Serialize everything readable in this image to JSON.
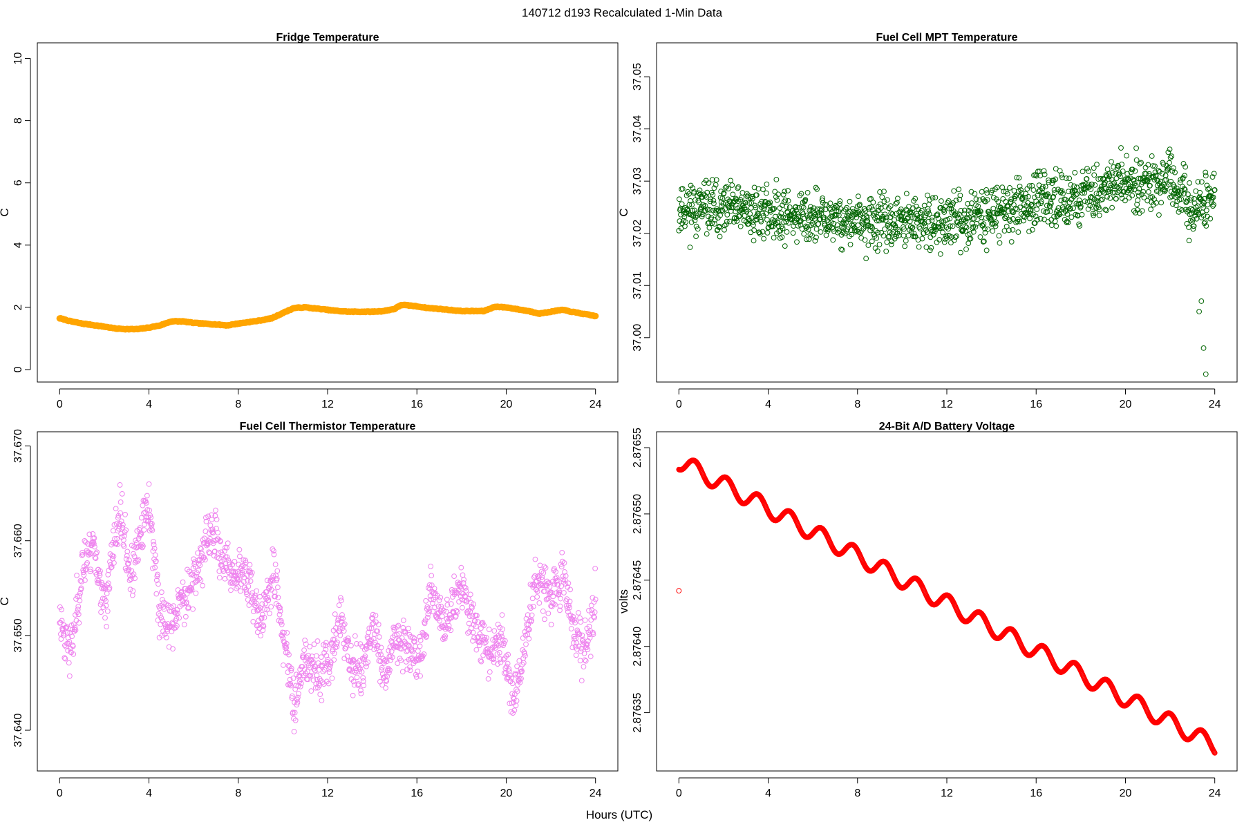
{
  "figure": {
    "title": "140712   d193   Recalculated 1-Min Data",
    "xlabel": "Hours (UTC)"
  },
  "chart_data": [
    {
      "type": "scatter",
      "title": "Fridge Temperature",
      "xlabel": "",
      "ylabel": "C",
      "xlim": [
        -1,
        25
      ],
      "ylim": [
        -0.4,
        10.5
      ],
      "xticks": [
        0,
        4,
        8,
        12,
        16,
        20,
        24
      ],
      "yticks": [
        0,
        2,
        4,
        6,
        8,
        10
      ],
      "ytick_labels": [
        "0",
        "2",
        "4",
        "6",
        "8",
        "10"
      ],
      "color": "#ffa500",
      "series_shape": {
        "mode": "piecewise",
        "noise": 0.02,
        "anchors": [
          [
            0,
            1.65
          ],
          [
            0.5,
            1.55
          ],
          [
            1,
            1.48
          ],
          [
            2,
            1.38
          ],
          [
            2.5,
            1.32
          ],
          [
            3,
            1.3
          ],
          [
            3.5,
            1.3
          ],
          [
            4,
            1.35
          ],
          [
            4.5,
            1.42
          ],
          [
            5,
            1.55
          ],
          [
            5.5,
            1.55
          ],
          [
            6,
            1.5
          ],
          [
            7,
            1.45
          ],
          [
            7.5,
            1.42
          ],
          [
            8,
            1.48
          ],
          [
            9,
            1.58
          ],
          [
            9.5,
            1.65
          ],
          [
            10,
            1.82
          ],
          [
            10.5,
            1.98
          ],
          [
            11,
            2.0
          ],
          [
            12,
            1.92
          ],
          [
            12.5,
            1.88
          ],
          [
            13,
            1.86
          ],
          [
            14,
            1.86
          ],
          [
            14.5,
            1.88
          ],
          [
            15,
            1.95
          ],
          [
            15.3,
            2.08
          ],
          [
            15.8,
            2.05
          ],
          [
            16.5,
            1.98
          ],
          [
            17,
            1.95
          ],
          [
            18,
            1.88
          ],
          [
            19,
            1.88
          ],
          [
            19.5,
            2.02
          ],
          [
            20,
            2.0
          ],
          [
            21,
            1.88
          ],
          [
            21.5,
            1.8
          ],
          [
            22,
            1.86
          ],
          [
            22.5,
            1.92
          ],
          [
            23,
            1.85
          ],
          [
            24,
            1.72
          ]
        ]
      }
    },
    {
      "type": "scatter",
      "title": "Fuel Cell MPT Temperature",
      "xlabel": "",
      "ylabel": "C",
      "xlim": [
        -1,
        25
      ],
      "ylim": [
        36.9915,
        37.0565
      ],
      "xticks": [
        0,
        4,
        8,
        12,
        16,
        20,
        24
      ],
      "yticks": [
        37.0,
        37.01,
        37.02,
        37.03,
        37.04,
        37.05
      ],
      "ytick_labels": [
        "37.00",
        "37.01",
        "37.02",
        "37.03",
        "37.04",
        "37.05"
      ],
      "color": "#006400",
      "series_shape": {
        "mode": "noisy",
        "seed": 11,
        "anchors": [
          [
            0,
            37.025
          ],
          [
            4,
            37.024
          ],
          [
            8,
            37.022
          ],
          [
            12,
            37.022
          ],
          [
            16,
            37.026
          ],
          [
            18,
            37.027
          ],
          [
            20,
            37.03
          ],
          [
            22,
            37.03
          ],
          [
            23,
            37.024
          ],
          [
            24,
            37.028
          ]
        ],
        "spread": 0.0085,
        "outliers": [
          [
            23.3,
            37.005
          ],
          [
            23.5,
            36.998
          ],
          [
            23.6,
            36.993
          ],
          [
            23.4,
            37.007
          ]
        ]
      }
    },
    {
      "type": "scatter",
      "title": "Fuel Cell Thermistor Temperature",
      "xlabel": "",
      "ylabel": "C",
      "xlim": [
        -1,
        25
      ],
      "ylim": [
        37.6357,
        37.6715
      ],
      "xticks": [
        0,
        4,
        8,
        12,
        16,
        20,
        24
      ],
      "yticks": [
        37.64,
        37.65,
        37.66,
        37.67
      ],
      "ytick_labels": [
        "37.640",
        "37.650",
        "37.660",
        "37.670"
      ],
      "color": "#ee82ee",
      "series_shape": {
        "mode": "noisy",
        "seed": 23,
        "anchors": [
          [
            0,
            37.652
          ],
          [
            0.5,
            37.648
          ],
          [
            1,
            37.657
          ],
          [
            1.5,
            37.66
          ],
          [
            2,
            37.653
          ],
          [
            2.7,
            37.663
          ],
          [
            3.2,
            37.656
          ],
          [
            4,
            37.664
          ],
          [
            4.5,
            37.652
          ],
          [
            5,
            37.651
          ],
          [
            5.5,
            37.654
          ],
          [
            6,
            37.656
          ],
          [
            6.8,
            37.661
          ],
          [
            7.5,
            37.657
          ],
          [
            8.5,
            37.656
          ],
          [
            9,
            37.651
          ],
          [
            9.6,
            37.657
          ],
          [
            10,
            37.65
          ],
          [
            10.5,
            37.643
          ],
          [
            11,
            37.648
          ],
          [
            11.5,
            37.646
          ],
          [
            12,
            37.647
          ],
          [
            12.6,
            37.652
          ],
          [
            13,
            37.647
          ],
          [
            13.5,
            37.646
          ],
          [
            14,
            37.651
          ],
          [
            14.6,
            37.645
          ],
          [
            15,
            37.65
          ],
          [
            15.5,
            37.649
          ],
          [
            16.2,
            37.648
          ],
          [
            16.6,
            37.655
          ],
          [
            17.2,
            37.651
          ],
          [
            18,
            37.655
          ],
          [
            18.6,
            37.651
          ],
          [
            19.2,
            37.648
          ],
          [
            19.8,
            37.65
          ],
          [
            20.3,
            37.643
          ],
          [
            20.8,
            37.648
          ],
          [
            21.3,
            37.656
          ],
          [
            22,
            37.655
          ],
          [
            22.6,
            37.656
          ],
          [
            23,
            37.651
          ],
          [
            23.5,
            37.648
          ],
          [
            24,
            37.654
          ]
        ],
        "spread": 0.0045
      }
    },
    {
      "type": "scatter",
      "title": "24-Bit A/D Battery Voltage",
      "xlabel": "",
      "ylabel": "volts",
      "xlim": [
        -1,
        25
      ],
      "ylim": [
        2.876306,
        2.876562
      ],
      "xticks": [
        0,
        4,
        8,
        12,
        16,
        20,
        24
      ],
      "yticks": [
        2.87635,
        2.8764,
        2.87645,
        2.8765,
        2.87655
      ],
      "ytick_labels": [
        "2.87635",
        "2.87640",
        "2.87645",
        "2.87650",
        "2.87655"
      ],
      "color": "#ff0000",
      "series_shape": {
        "mode": "wave",
        "start": 2.87654,
        "end": 2.876325,
        "amp": 6.5e-06,
        "period": 1.42,
        "phase": 0.35,
        "outliers": [
          [
            0,
            2.876442
          ]
        ]
      }
    }
  ]
}
